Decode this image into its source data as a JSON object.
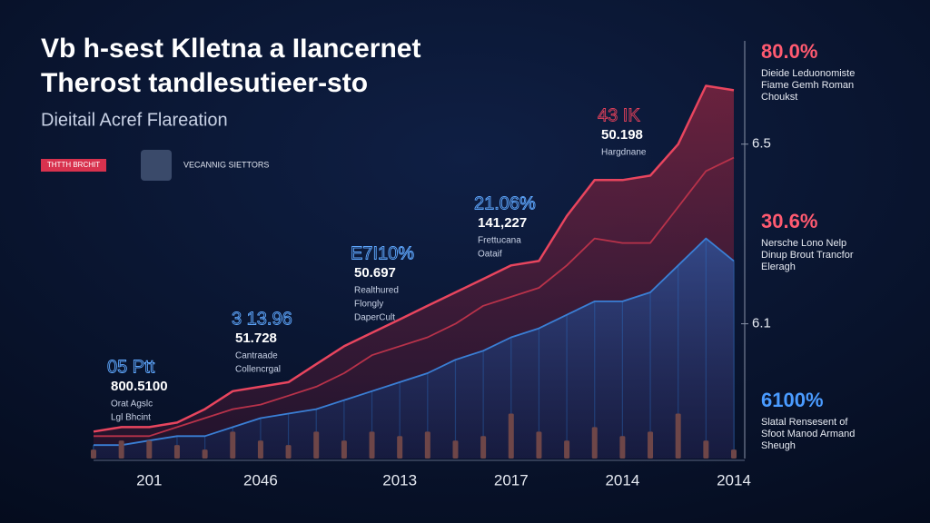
{
  "header": {
    "title": [
      "Vb h-sest Klletna a IIancernet",
      "Therost tandlesutieer-sto"
    ],
    "subtitle": "Dieitail Acref Flareation",
    "badge": "THTTH BRCHIT",
    "source": "VECANNIG SIETTORS"
  },
  "chart_data": {
    "type": "line",
    "categories": [
      null,
      null,
      "201",
      null,
      null,
      null,
      "2046",
      null,
      null,
      null,
      null,
      "2013",
      null,
      null,
      null,
      "2017",
      null,
      null,
      null,
      "2014",
      null,
      null,
      null,
      "2014"
    ],
    "series": [
      {
        "color": "#e8455e",
        "values": [
          5.86,
          5.87,
          5.87,
          5.88,
          5.91,
          5.95,
          5.96,
          5.97,
          6.01,
          6.05,
          6.08,
          6.11,
          6.14,
          6.17,
          6.2,
          6.23,
          6.24,
          6.34,
          6.42,
          6.42,
          6.43,
          6.5,
          6.63,
          6.62
        ]
      },
      {
        "color": "#b8324a",
        "values": [
          5.85,
          5.85,
          5.85,
          5.87,
          5.89,
          5.91,
          5.92,
          5.94,
          5.96,
          5.99,
          6.03,
          6.05,
          6.07,
          6.1,
          6.14,
          6.16,
          6.18,
          6.23,
          6.29,
          6.28,
          6.28,
          6.36,
          6.44,
          6.47
        ]
      },
      {
        "color": "#3a7fd5",
        "values": [
          5.83,
          5.83,
          5.84,
          5.85,
          5.85,
          5.87,
          5.89,
          5.9,
          5.91,
          5.93,
          5.95,
          5.97,
          5.99,
          6.02,
          6.04,
          6.07,
          6.09,
          6.12,
          6.15,
          6.15,
          6.17,
          6.23,
          6.29,
          6.24
        ]
      },
      {
        "type": "bar",
        "color": "#6e4648",
        "values": [
          5.82,
          5.84,
          5.84,
          5.83,
          5.82,
          5.86,
          5.84,
          5.83,
          5.86,
          5.84,
          5.86,
          5.85,
          5.86,
          5.84,
          5.85,
          5.9,
          5.86,
          5.84,
          5.87,
          5.85,
          5.86,
          5.9,
          5.84,
          5.82
        ]
      }
    ],
    "ylim": [
      5.8,
      6.73
    ],
    "yticks": [
      6.1,
      6.5
    ],
    "y_axis_side": "right",
    "annotations": [
      {
        "lines": [
          "43 IK",
          "50.198",
          "Hargdnane"
        ],
        "color": "#e0405a"
      },
      {
        "lines": [
          "21.06%",
          "141,227",
          "Frettucana",
          "Oataif"
        ],
        "color": "#5fa8ff"
      },
      {
        "lines": [
          "E7I10%",
          "50.697",
          "Realthured",
          "Flongly",
          "DaperCult"
        ],
        "color": "#5fa8ff"
      },
      {
        "lines": [
          "3 13.96",
          "51.728",
          "Cantraade",
          "Collencrgal"
        ],
        "color": "#5fa8ff"
      },
      {
        "lines": [
          "05 Ptt",
          "800.5100",
          "Orat Agslc",
          "Lgl Bhcint"
        ],
        "color": "#5fa8ff"
      }
    ],
    "side_notes": [
      {
        "lines": [
          "80.0%",
          "Dieide Leduonomiste",
          "Fiame Gemh Roman",
          "Choukst"
        ],
        "color": "#ff5a70"
      },
      {
        "lines": [
          "30.6%",
          "Nersche Lono Nelp",
          "Dinup Brout Trancfor",
          "Eleragh"
        ],
        "color": "#ff5a70"
      },
      {
        "lines": [
          "6100%",
          "Slatal Rensesent of",
          "Sfoot Manod Armand",
          "Sheugh"
        ],
        "color": "#4a9bff"
      }
    ]
  }
}
